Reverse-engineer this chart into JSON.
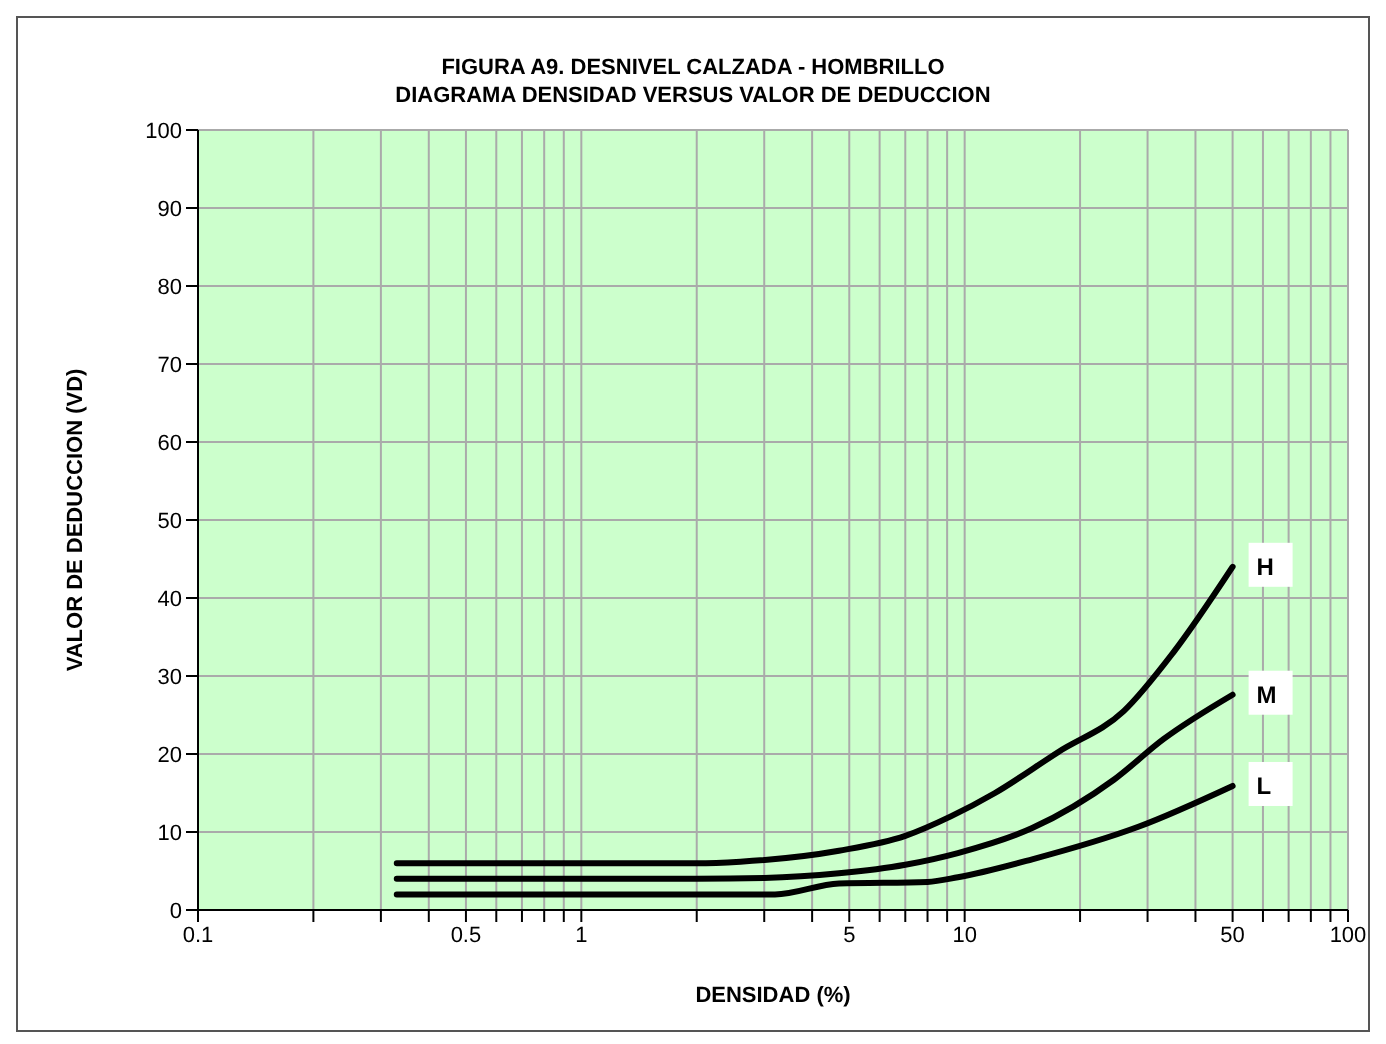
{
  "chart_data": {
    "type": "line",
    "title": "FIGURA A9. DESNIVEL CALZADA - HOMBRILLO",
    "subtitle": "DIAGRAMA DENSIDAD VERSUS VALOR DE DEDUCCION",
    "xlabel": "DENSIDAD  (%)",
    "ylabel": "VALOR DE DEDUCCION  (VD)",
    "log": "x",
    "grid": true,
    "marker": "none",
    "line_style": "solid",
    "xlim": [
      0.1,
      100
    ],
    "ylim": [
      0,
      100
    ],
    "xticks": [
      0.1,
      {
        "value": 0.2,
        "label": null
      },
      {
        "value": 0.3,
        "label": null
      },
      {
        "value": 0.4,
        "label": null
      },
      0.5,
      {
        "value": 0.6,
        "label": null
      },
      {
        "value": 0.7,
        "label": null
      },
      {
        "value": 0.8,
        "label": null
      },
      {
        "value": 0.9,
        "label": null
      },
      1,
      {
        "value": 2,
        "label": null
      },
      {
        "value": 3,
        "label": null
      },
      {
        "value": 4,
        "label": null
      },
      5,
      {
        "value": 6,
        "label": null
      },
      {
        "value": 7,
        "label": null
      },
      {
        "value": 8,
        "label": null
      },
      {
        "value": 9,
        "label": null
      },
      10,
      {
        "value": 20,
        "label": null
      },
      {
        "value": 30,
        "label": null
      },
      {
        "value": 40,
        "label": null
      },
      50,
      {
        "value": 60,
        "label": null
      },
      {
        "value": 70,
        "label": null
      },
      {
        "value": 80,
        "label": null
      },
      {
        "value": 90,
        "label": null
      },
      100
    ],
    "yticks": [
      0,
      10,
      20,
      30,
      40,
      50,
      60,
      70,
      80,
      90,
      100
    ],
    "series": [
      {
        "name": "H",
        "color": "#000000",
        "x": [
          0.33,
          1,
          2,
          2.6,
          4.7,
          7,
          9.2,
          12,
          17.6,
          26,
          35,
          50
        ],
        "values": [
          6,
          6,
          6,
          6.2,
          7.6,
          9.5,
          12,
          15,
          20.3,
          25.5,
          33,
          44
        ]
      },
      {
        "name": "M",
        "color": "#000000",
        "x": [
          0.33,
          1,
          2,
          3,
          4.7,
          7,
          9.6,
          15,
          24.5,
          33,
          50
        ],
        "values": [
          4,
          4,
          4,
          4.1,
          4.7,
          5.8,
          7.3,
          10.5,
          16.7,
          21.9,
          27.6
        ]
      },
      {
        "name": "L",
        "color": "#000000",
        "x": [
          0.33,
          1,
          2,
          3.2,
          4.7,
          8,
          9.6,
          15,
          28.5,
          50
        ],
        "values": [
          2,
          2,
          2,
          2,
          3.4,
          3.6,
          4.2,
          6.5,
          10.7,
          15.9
        ]
      }
    ]
  }
}
